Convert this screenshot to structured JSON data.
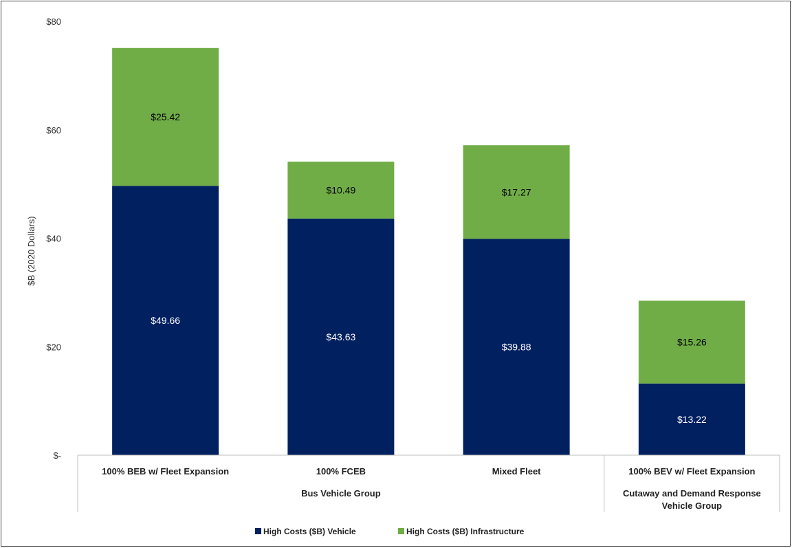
{
  "chart_data": {
    "type": "bar",
    "stacked": true,
    "title": "",
    "xlabel": "",
    "ylabel": "$B (2020 Dollars)",
    "ylim": [
      0,
      80
    ],
    "yticks": [
      0,
      20,
      40,
      60,
      80
    ],
    "ytick_labels": [
      "$-",
      "$20",
      "$40",
      "$60",
      "$80"
    ],
    "grid": false,
    "legend_position": "bottom",
    "categories": [
      "100% BEB w/ Fleet Expansion",
      "100% FCEB",
      "Mixed Fleet",
      "100% BEV w/ Fleet Expansion"
    ],
    "groups": [
      {
        "label": "Bus Vehicle Group",
        "categories": [
          "100% BEB w/ Fleet Expansion",
          "100% FCEB",
          "Mixed Fleet"
        ]
      },
      {
        "label": "Cutaway and Demand Response Vehicle Group",
        "categories": [
          "100% BEV w/ Fleet Expansion"
        ]
      }
    ],
    "series": [
      {
        "name": "High Costs ($B) Vehicle",
        "color": "#002060",
        "label_color": "#ffffff",
        "values": [
          49.66,
          43.63,
          39.88,
          13.22
        ],
        "labels": [
          "$49.66",
          "$43.63",
          "$39.88",
          "$13.22"
        ]
      },
      {
        "name": "High Costs ($B) Infrastructure",
        "color": "#70AD47",
        "label_color": "#000000",
        "values": [
          25.42,
          10.49,
          17.27,
          15.26
        ],
        "labels": [
          "$25.42",
          "$10.49",
          "$17.27",
          "$15.26"
        ]
      }
    ]
  }
}
